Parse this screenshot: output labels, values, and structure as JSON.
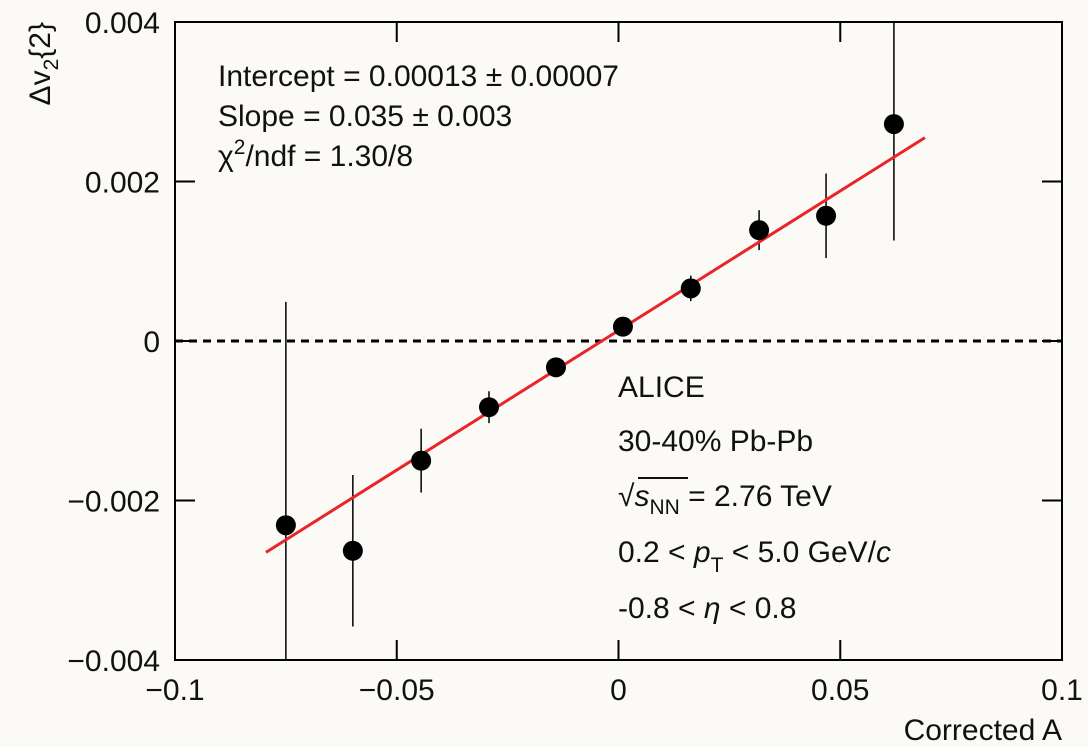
{
  "chart_data": {
    "type": "scatter",
    "xlabel": "Corrected A",
    "ylabel": [
      "Δv",
      "2",
      "{2}"
    ],
    "x": [
      -0.075,
      -0.0599,
      -0.0445,
      -0.0292,
      -0.0141,
      0.001,
      0.0163,
      0.0317,
      0.0468,
      0.0621
    ],
    "values": [
      -0.00231,
      -0.00263,
      -0.0015,
      -0.00083,
      -0.00033,
      0.00018,
      0.00066,
      0.00139,
      0.00157,
      0.00272
    ],
    "errors": [
      0.0028,
      0.00095,
      0.0004,
      0.0002,
      0.00012,
      0.0001,
      0.00016,
      0.00025,
      0.00053,
      0.00146
    ],
    "color": "#000000",
    "fit": {
      "x": [
        -0.0795,
        0.0691
      ],
      "values": [
        -0.00265,
        0.00255
      ],
      "color": "#e8262a"
    },
    "reference_line": 0,
    "xlim": [
      -0.1,
      0.1
    ],
    "ylim": [
      -0.004,
      0.004
    ],
    "xticks": [
      {
        "value": -0.1,
        "label": "−0.1"
      },
      {
        "value": -0.05,
        "label": "−0.05"
      },
      0,
      0.05,
      0.1
    ],
    "yticks": [
      {
        "value": -0.004,
        "label": "−0.004"
      },
      {
        "value": -0.002,
        "label": "−0.002"
      },
      0,
      0.002,
      0.004
    ],
    "stats": {
      "intercept": "Intercept = 0.00013 ± 0.00007",
      "slope": "Slope = 0.035 ± 0.003",
      "chi2": [
        "χ",
        "2",
        "/ndf = 1.30/8"
      ]
    },
    "labels": {
      "experiment": "ALICE",
      "centrality": "30-40% Pb-Pb",
      "energy": [
        "√",
        "s",
        "NN",
        " = 2.76 TeV"
      ],
      "pt": [
        "0.2 < ",
        "p",
        "T",
        " < 5.0 GeV/",
        "c"
      ],
      "eta": [
        "-0.8 < ",
        "η",
        " < 0.8"
      ]
    }
  }
}
